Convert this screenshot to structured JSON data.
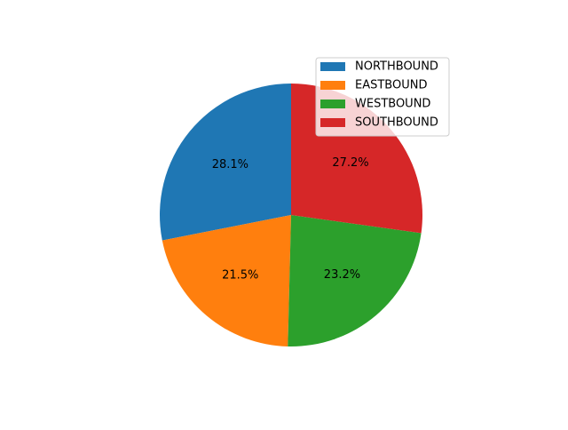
{
  "chart_data": {
    "type": "pie",
    "title": "",
    "categories": [
      "NORTHBOUND",
      "EASTBOUND",
      "WESTBOUND",
      "SOUTHBOUND"
    ],
    "values": [
      28.1,
      21.5,
      23.2,
      27.2
    ],
    "labels": [
      "28.1%",
      "21.5%",
      "23.2%",
      "27.2%"
    ],
    "colors": [
      "#1f77b4",
      "#ff7f0e",
      "#2ca02c",
      "#d62728"
    ],
    "start_angle_deg": 90,
    "direction": "counterclockwise",
    "legend": {
      "placement": "top-right",
      "entries": [
        "NORTHBOUND",
        "EASTBOUND",
        "WESTBOUND",
        "SOUTHBOUND"
      ]
    }
  }
}
